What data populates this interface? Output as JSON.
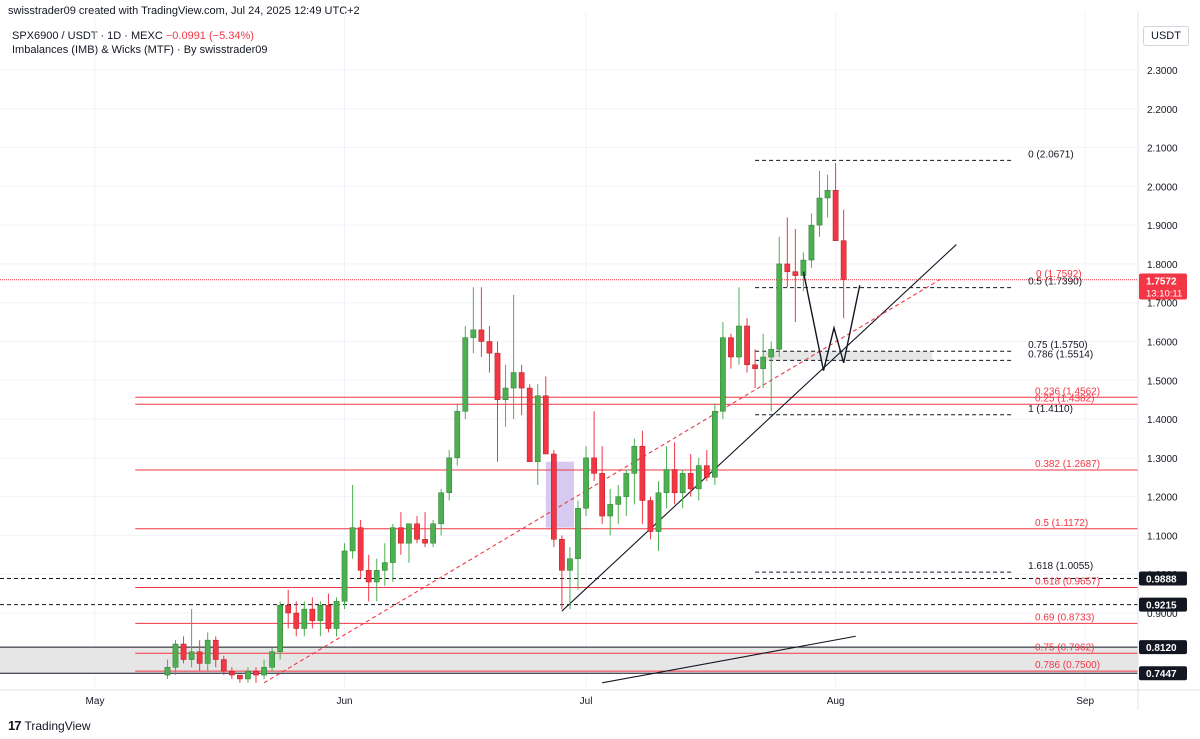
{
  "header": {
    "credit": "swisstrader09 created with TradingView.com, Jul 24, 2025 12:49 UTC+2",
    "symbol": "SPX6900 / USDT · 1D · MEXC",
    "change": "−0.0991 (−5.34%)",
    "indicator": "Imbalances (IMB) & Wicks (MTF) · By swisstrader09",
    "currency": "USDT"
  },
  "logo": {
    "text": "TradingView",
    "mark": "17"
  },
  "chart_data": {
    "type": "candlestick",
    "ylim": [
      0.72,
      2.37
    ],
    "y_ticks": [
      "2.3000",
      "2.2000",
      "2.1000",
      "2.0000",
      "1.9000",
      "1.8000",
      "1.7000",
      "1.6000",
      "1.5000",
      "1.4000",
      "1.3000",
      "1.2000",
      "1.1000",
      "1.0000",
      "0.9000"
    ],
    "y_tick_values": [
      2.3,
      2.2,
      2.1,
      2.0,
      1.9,
      1.8,
      1.7,
      1.6,
      1.5,
      1.4,
      1.3,
      1.2,
      1.1,
      1.0,
      0.9
    ],
    "x_ticks": [
      {
        "label": "May",
        "day": 0
      },
      {
        "label": "Jun",
        "day": 31
      },
      {
        "label": "Jul",
        "day": 61
      },
      {
        "label": "Aug",
        "day": 92
      },
      {
        "label": "Sep",
        "day": 123
      }
    ],
    "candles": [
      {
        "d": 9,
        "o": 0.74,
        "h": 0.78,
        "l": 0.73,
        "c": 0.76
      },
      {
        "d": 10,
        "o": 0.76,
        "h": 0.83,
        "l": 0.74,
        "c": 0.82
      },
      {
        "d": 11,
        "o": 0.82,
        "h": 0.84,
        "l": 0.77,
        "c": 0.78
      },
      {
        "d": 12,
        "o": 0.78,
        "h": 0.91,
        "l": 0.76,
        "c": 0.8
      },
      {
        "d": 13,
        "o": 0.8,
        "h": 0.83,
        "l": 0.75,
        "c": 0.77
      },
      {
        "d": 14,
        "o": 0.77,
        "h": 0.85,
        "l": 0.75,
        "c": 0.83
      },
      {
        "d": 15,
        "o": 0.83,
        "h": 0.84,
        "l": 0.76,
        "c": 0.78
      },
      {
        "d": 16,
        "o": 0.78,
        "h": 0.79,
        "l": 0.74,
        "c": 0.75
      },
      {
        "d": 17,
        "o": 0.75,
        "h": 0.76,
        "l": 0.73,
        "c": 0.74
      },
      {
        "d": 18,
        "o": 0.74,
        "h": 0.74,
        "l": 0.72,
        "c": 0.73
      },
      {
        "d": 19,
        "o": 0.73,
        "h": 0.76,
        "l": 0.72,
        "c": 0.75
      },
      {
        "d": 20,
        "o": 0.75,
        "h": 0.76,
        "l": 0.72,
        "c": 0.74
      },
      {
        "d": 21,
        "o": 0.74,
        "h": 0.78,
        "l": 0.73,
        "c": 0.76
      },
      {
        "d": 22,
        "o": 0.76,
        "h": 0.81,
        "l": 0.75,
        "c": 0.8
      },
      {
        "d": 23,
        "o": 0.8,
        "h": 0.93,
        "l": 0.78,
        "c": 0.92
      },
      {
        "d": 24,
        "o": 0.92,
        "h": 0.96,
        "l": 0.86,
        "c": 0.9
      },
      {
        "d": 25,
        "o": 0.9,
        "h": 0.93,
        "l": 0.84,
        "c": 0.86
      },
      {
        "d": 26,
        "o": 0.86,
        "h": 0.93,
        "l": 0.84,
        "c": 0.91
      },
      {
        "d": 27,
        "o": 0.91,
        "h": 0.94,
        "l": 0.86,
        "c": 0.88
      },
      {
        "d": 28,
        "o": 0.88,
        "h": 0.93,
        "l": 0.84,
        "c": 0.92
      },
      {
        "d": 29,
        "o": 0.92,
        "h": 0.95,
        "l": 0.85,
        "c": 0.86
      },
      {
        "d": 30,
        "o": 0.86,
        "h": 0.94,
        "l": 0.84,
        "c": 0.93
      },
      {
        "d": 31,
        "o": 0.93,
        "h": 1.08,
        "l": 0.91,
        "c": 1.06
      },
      {
        "d": 32,
        "o": 1.06,
        "h": 1.23,
        "l": 1.04,
        "c": 1.12
      },
      {
        "d": 33,
        "o": 1.12,
        "h": 1.14,
        "l": 0.99,
        "c": 1.01
      },
      {
        "d": 34,
        "o": 1.01,
        "h": 1.05,
        "l": 0.93,
        "c": 0.98
      },
      {
        "d": 35,
        "o": 0.98,
        "h": 1.04,
        "l": 0.93,
        "c": 1.01
      },
      {
        "d": 36,
        "o": 1.01,
        "h": 1.08,
        "l": 0.97,
        "c": 1.03
      },
      {
        "d": 37,
        "o": 1.03,
        "h": 1.13,
        "l": 0.98,
        "c": 1.12
      },
      {
        "d": 38,
        "o": 1.12,
        "h": 1.16,
        "l": 1.05,
        "c": 1.08
      },
      {
        "d": 39,
        "o": 1.08,
        "h": 1.13,
        "l": 1.03,
        "c": 1.13
      },
      {
        "d": 40,
        "o": 1.13,
        "h": 1.15,
        "l": 1.08,
        "c": 1.09
      },
      {
        "d": 41,
        "o": 1.09,
        "h": 1.16,
        "l": 1.07,
        "c": 1.08
      },
      {
        "d": 42,
        "o": 1.08,
        "h": 1.14,
        "l": 1.07,
        "c": 1.13
      },
      {
        "d": 43,
        "o": 1.13,
        "h": 1.22,
        "l": 1.1,
        "c": 1.21
      },
      {
        "d": 44,
        "o": 1.21,
        "h": 1.32,
        "l": 1.19,
        "c": 1.3
      },
      {
        "d": 45,
        "o": 1.3,
        "h": 1.44,
        "l": 1.28,
        "c": 1.42
      },
      {
        "d": 46,
        "o": 1.42,
        "h": 1.64,
        "l": 1.4,
        "c": 1.61
      },
      {
        "d": 47,
        "o": 1.61,
        "h": 1.74,
        "l": 1.57,
        "c": 1.63
      },
      {
        "d": 48,
        "o": 1.63,
        "h": 1.74,
        "l": 1.56,
        "c": 1.6
      },
      {
        "d": 49,
        "o": 1.6,
        "h": 1.64,
        "l": 1.52,
        "c": 1.57
      },
      {
        "d": 50,
        "o": 1.57,
        "h": 1.6,
        "l": 1.29,
        "c": 1.45
      },
      {
        "d": 51,
        "o": 1.45,
        "h": 1.54,
        "l": 1.38,
        "c": 1.48
      },
      {
        "d": 52,
        "o": 1.48,
        "h": 1.72,
        "l": 1.4,
        "c": 1.52
      },
      {
        "d": 53,
        "o": 1.52,
        "h": 1.54,
        "l": 1.41,
        "c": 1.48
      },
      {
        "d": 54,
        "o": 1.48,
        "h": 1.49,
        "l": 1.29,
        "c": 1.29
      },
      {
        "d": 55,
        "o": 1.29,
        "h": 1.49,
        "l": 1.23,
        "c": 1.46
      },
      {
        "d": 56,
        "o": 1.46,
        "h": 1.51,
        "l": 1.31,
        "c": 1.31
      },
      {
        "d": 57,
        "o": 1.31,
        "h": 1.32,
        "l": 1.07,
        "c": 1.09
      },
      {
        "d": 58,
        "o": 1.09,
        "h": 1.1,
        "l": 0.91,
        "c": 1.01
      },
      {
        "d": 59,
        "o": 1.01,
        "h": 1.07,
        "l": 0.91,
        "c": 1.04
      },
      {
        "d": 60,
        "o": 1.04,
        "h": 1.19,
        "l": 0.96,
        "c": 1.17
      },
      {
        "d": 61,
        "o": 1.17,
        "h": 1.33,
        "l": 1.15,
        "c": 1.3
      },
      {
        "d": 62,
        "o": 1.3,
        "h": 1.42,
        "l": 1.24,
        "c": 1.26
      },
      {
        "d": 63,
        "o": 1.26,
        "h": 1.33,
        "l": 1.13,
        "c": 1.15
      },
      {
        "d": 64,
        "o": 1.15,
        "h": 1.22,
        "l": 1.1,
        "c": 1.18
      },
      {
        "d": 65,
        "o": 1.18,
        "h": 1.23,
        "l": 1.13,
        "c": 1.2
      },
      {
        "d": 66,
        "o": 1.2,
        "h": 1.27,
        "l": 1.15,
        "c": 1.26
      },
      {
        "d": 67,
        "o": 1.26,
        "h": 1.35,
        "l": 1.18,
        "c": 1.33
      },
      {
        "d": 68,
        "o": 1.33,
        "h": 1.37,
        "l": 1.13,
        "c": 1.19
      },
      {
        "d": 69,
        "o": 1.19,
        "h": 1.2,
        "l": 1.09,
        "c": 1.11
      },
      {
        "d": 70,
        "o": 1.11,
        "h": 1.24,
        "l": 1.06,
        "c": 1.21
      },
      {
        "d": 71,
        "o": 1.21,
        "h": 1.33,
        "l": 1.17,
        "c": 1.27
      },
      {
        "d": 72,
        "o": 1.27,
        "h": 1.34,
        "l": 1.18,
        "c": 1.21
      },
      {
        "d": 73,
        "o": 1.21,
        "h": 1.27,
        "l": 1.17,
        "c": 1.26
      },
      {
        "d": 74,
        "o": 1.26,
        "h": 1.31,
        "l": 1.2,
        "c": 1.22
      },
      {
        "d": 75,
        "o": 1.22,
        "h": 1.3,
        "l": 1.19,
        "c": 1.28
      },
      {
        "d": 76,
        "o": 1.28,
        "h": 1.32,
        "l": 1.24,
        "c": 1.25
      },
      {
        "d": 77,
        "o": 1.25,
        "h": 1.44,
        "l": 1.23,
        "c": 1.42
      },
      {
        "d": 78,
        "o": 1.42,
        "h": 1.65,
        "l": 1.4,
        "c": 1.61
      },
      {
        "d": 79,
        "o": 1.61,
        "h": 1.62,
        "l": 1.53,
        "c": 1.56
      },
      {
        "d": 80,
        "o": 1.56,
        "h": 1.74,
        "l": 1.54,
        "c": 1.64
      },
      {
        "d": 81,
        "o": 1.64,
        "h": 1.66,
        "l": 1.52,
        "c": 1.54
      },
      {
        "d": 82,
        "o": 1.54,
        "h": 1.58,
        "l": 1.48,
        "c": 1.53
      },
      {
        "d": 83,
        "o": 1.53,
        "h": 1.62,
        "l": 1.48,
        "c": 1.56
      },
      {
        "d": 84,
        "o": 1.56,
        "h": 1.6,
        "l": 1.42,
        "c": 1.58
      },
      {
        "d": 85,
        "o": 1.58,
        "h": 1.87,
        "l": 1.56,
        "c": 1.8
      },
      {
        "d": 86,
        "o": 1.8,
        "h": 1.92,
        "l": 1.74,
        "c": 1.78
      },
      {
        "d": 87,
        "o": 1.78,
        "h": 1.89,
        "l": 1.65,
        "c": 1.77
      },
      {
        "d": 88,
        "o": 1.77,
        "h": 1.83,
        "l": 1.73,
        "c": 1.81
      },
      {
        "d": 89,
        "o": 1.81,
        "h": 1.93,
        "l": 1.79,
        "c": 1.9
      },
      {
        "d": 90,
        "o": 1.9,
        "h": 2.04,
        "l": 1.87,
        "c": 1.97
      },
      {
        "d": 91,
        "o": 1.97,
        "h": 2.03,
        "l": 1.92,
        "c": 1.99
      },
      {
        "d": 92,
        "o": 1.99,
        "h": 2.06,
        "l": 1.86,
        "c": 1.86
      },
      {
        "d": 93,
        "o": 1.86,
        "h": 1.94,
        "l": 1.66,
        "c": 1.76
      }
    ],
    "levels": [
      {
        "label": "0 (2.0671)",
        "value": 2.0671,
        "color": "#131722",
        "dash": true,
        "d0": 82,
        "d1": 114
      },
      {
        "label": "0.5 (1.7390)",
        "value": 1.739,
        "color": "#131722",
        "dash": true,
        "d0": 82,
        "d1": 114
      },
      {
        "label": "0 (1.7592)",
        "value": 1.7592,
        "color": "#f23645",
        "dash": false,
        "d0": -20,
        "d1": 150
      },
      {
        "label": "0.75 (1.5750)",
        "value": 1.575,
        "color": "#131722",
        "dash": true,
        "d0": 82,
        "d1": 114
      },
      {
        "label": "0.786 (1.5514)",
        "value": 1.5514,
        "color": "#131722",
        "dash": true,
        "d0": 82,
        "d1": 114
      },
      {
        "label": "0.236 (1.4562)",
        "value": 1.4562,
        "color": "#f23645",
        "dash": false,
        "d0": 5,
        "d1": 145
      },
      {
        "label": "0.25 (1.4382)",
        "value": 1.4382,
        "color": "#f23645",
        "dash": false,
        "d0": 5,
        "d1": 145
      },
      {
        "label": "1 (1.4110)",
        "value": 1.411,
        "color": "#131722",
        "dash": true,
        "d0": 82,
        "d1": 114
      },
      {
        "label": "0.382 (1.2687)",
        "value": 1.2687,
        "color": "#f23645",
        "dash": false,
        "d0": 5,
        "d1": 145
      },
      {
        "label": "0.5 (1.1172)",
        "value": 1.1172,
        "color": "#f23645",
        "dash": false,
        "d0": 5,
        "d1": 145
      },
      {
        "label": "1.618 (1.0055)",
        "value": 1.0055,
        "color": "#131722",
        "dash": true,
        "d0": 82,
        "d1": 114
      },
      {
        "label": "0.618 (0.9657)",
        "value": 0.9657,
        "color": "#f23645",
        "dash": false,
        "d0": 5,
        "d1": 145
      },
      {
        "label": "0.69 (0.8733)",
        "value": 0.8733,
        "color": "#f23645",
        "dash": false,
        "d0": 5,
        "d1": 145
      },
      {
        "label": "0.75 (0.7962)",
        "value": 0.7962,
        "color": "#f23645",
        "dash": false,
        "d0": 5,
        "d1": 145
      },
      {
        "label": "0.786 (0.7500)",
        "value": 0.75,
        "color": "#f23645",
        "dash": false,
        "d0": 5,
        "d1": 145
      }
    ],
    "price_tags": [
      {
        "label": "1.7572",
        "value": 1.7572,
        "color": "#f23645",
        "sub": "13:10:11"
      },
      {
        "label": "0.9888",
        "value": 0.9888,
        "color": "#131722"
      },
      {
        "label": "0.9215",
        "value": 0.9215,
        "color": "#131722"
      },
      {
        "label": "0.8120",
        "value": 0.812,
        "color": "#131722"
      },
      {
        "label": "0.7447",
        "value": 0.7447,
        "color": "#131722"
      }
    ],
    "zones": [
      {
        "y0": 0.7447,
        "y1": 0.812,
        "d0": -20,
        "d1": 150,
        "fill": "#e6e6e6",
        "stroke": "#131722"
      },
      {
        "y0": 1.5514,
        "y1": 1.575,
        "d0": 83,
        "d1": 104,
        "fill": "#e6e6e6",
        "stroke": "none"
      },
      {
        "y0": 1.12,
        "y1": 1.29,
        "d0": 56,
        "d1": 59.5,
        "fill": "#d7c9ef",
        "stroke": "none"
      }
    ],
    "dashed_hlines": [
      {
        "value": 0.9888,
        "d0": -20,
        "d1": 150
      },
      {
        "value": 0.9215,
        "d0": -20,
        "d1": 150
      }
    ],
    "trendlines": [
      {
        "d0": 58,
        "v0": 0.905,
        "d1": 107,
        "v1": 1.85,
        "color": "#131722",
        "dash": false
      },
      {
        "d0": 21,
        "v0": 0.72,
        "d1": 105,
        "v1": 1.76,
        "color": "#f23645",
        "dash": true
      },
      {
        "d0": 63,
        "v0": 0.72,
        "d1": 94.5,
        "v1": 0.84,
        "color": "#131722",
        "dash": false
      }
    ],
    "projection": [
      {
        "d": 88,
        "v": 1.78
      },
      {
        "d": 90.5,
        "v": 1.525
      },
      {
        "d": 91.8,
        "v": 1.635
      },
      {
        "d": 93,
        "v": 1.545
      },
      {
        "d": 95,
        "v": 1.745
      }
    ],
    "colors": {
      "up": "#4caf50",
      "down": "#f23645",
      "grid": "#f0f3fa",
      "axis_text": "#131722"
    }
  }
}
